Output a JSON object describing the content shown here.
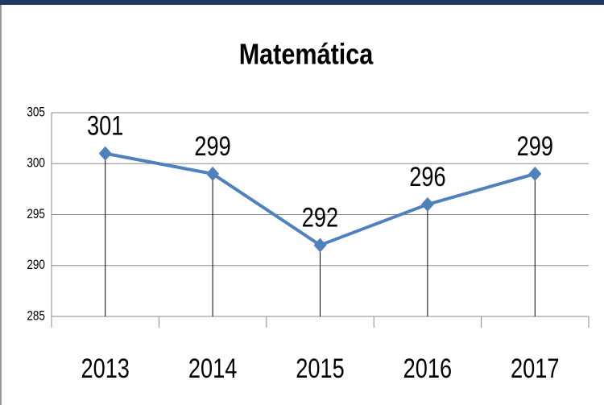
{
  "chart_data": {
    "type": "line",
    "title": "Matemática",
    "categories": [
      "2013",
      "2014",
      "2015",
      "2016",
      "2017"
    ],
    "values": [
      301,
      299,
      292,
      296,
      299
    ],
    "color": "#4f81bd",
    "ylim": [
      285,
      305
    ],
    "yticks": [
      285,
      290,
      295,
      300,
      305
    ],
    "grid": true
  }
}
